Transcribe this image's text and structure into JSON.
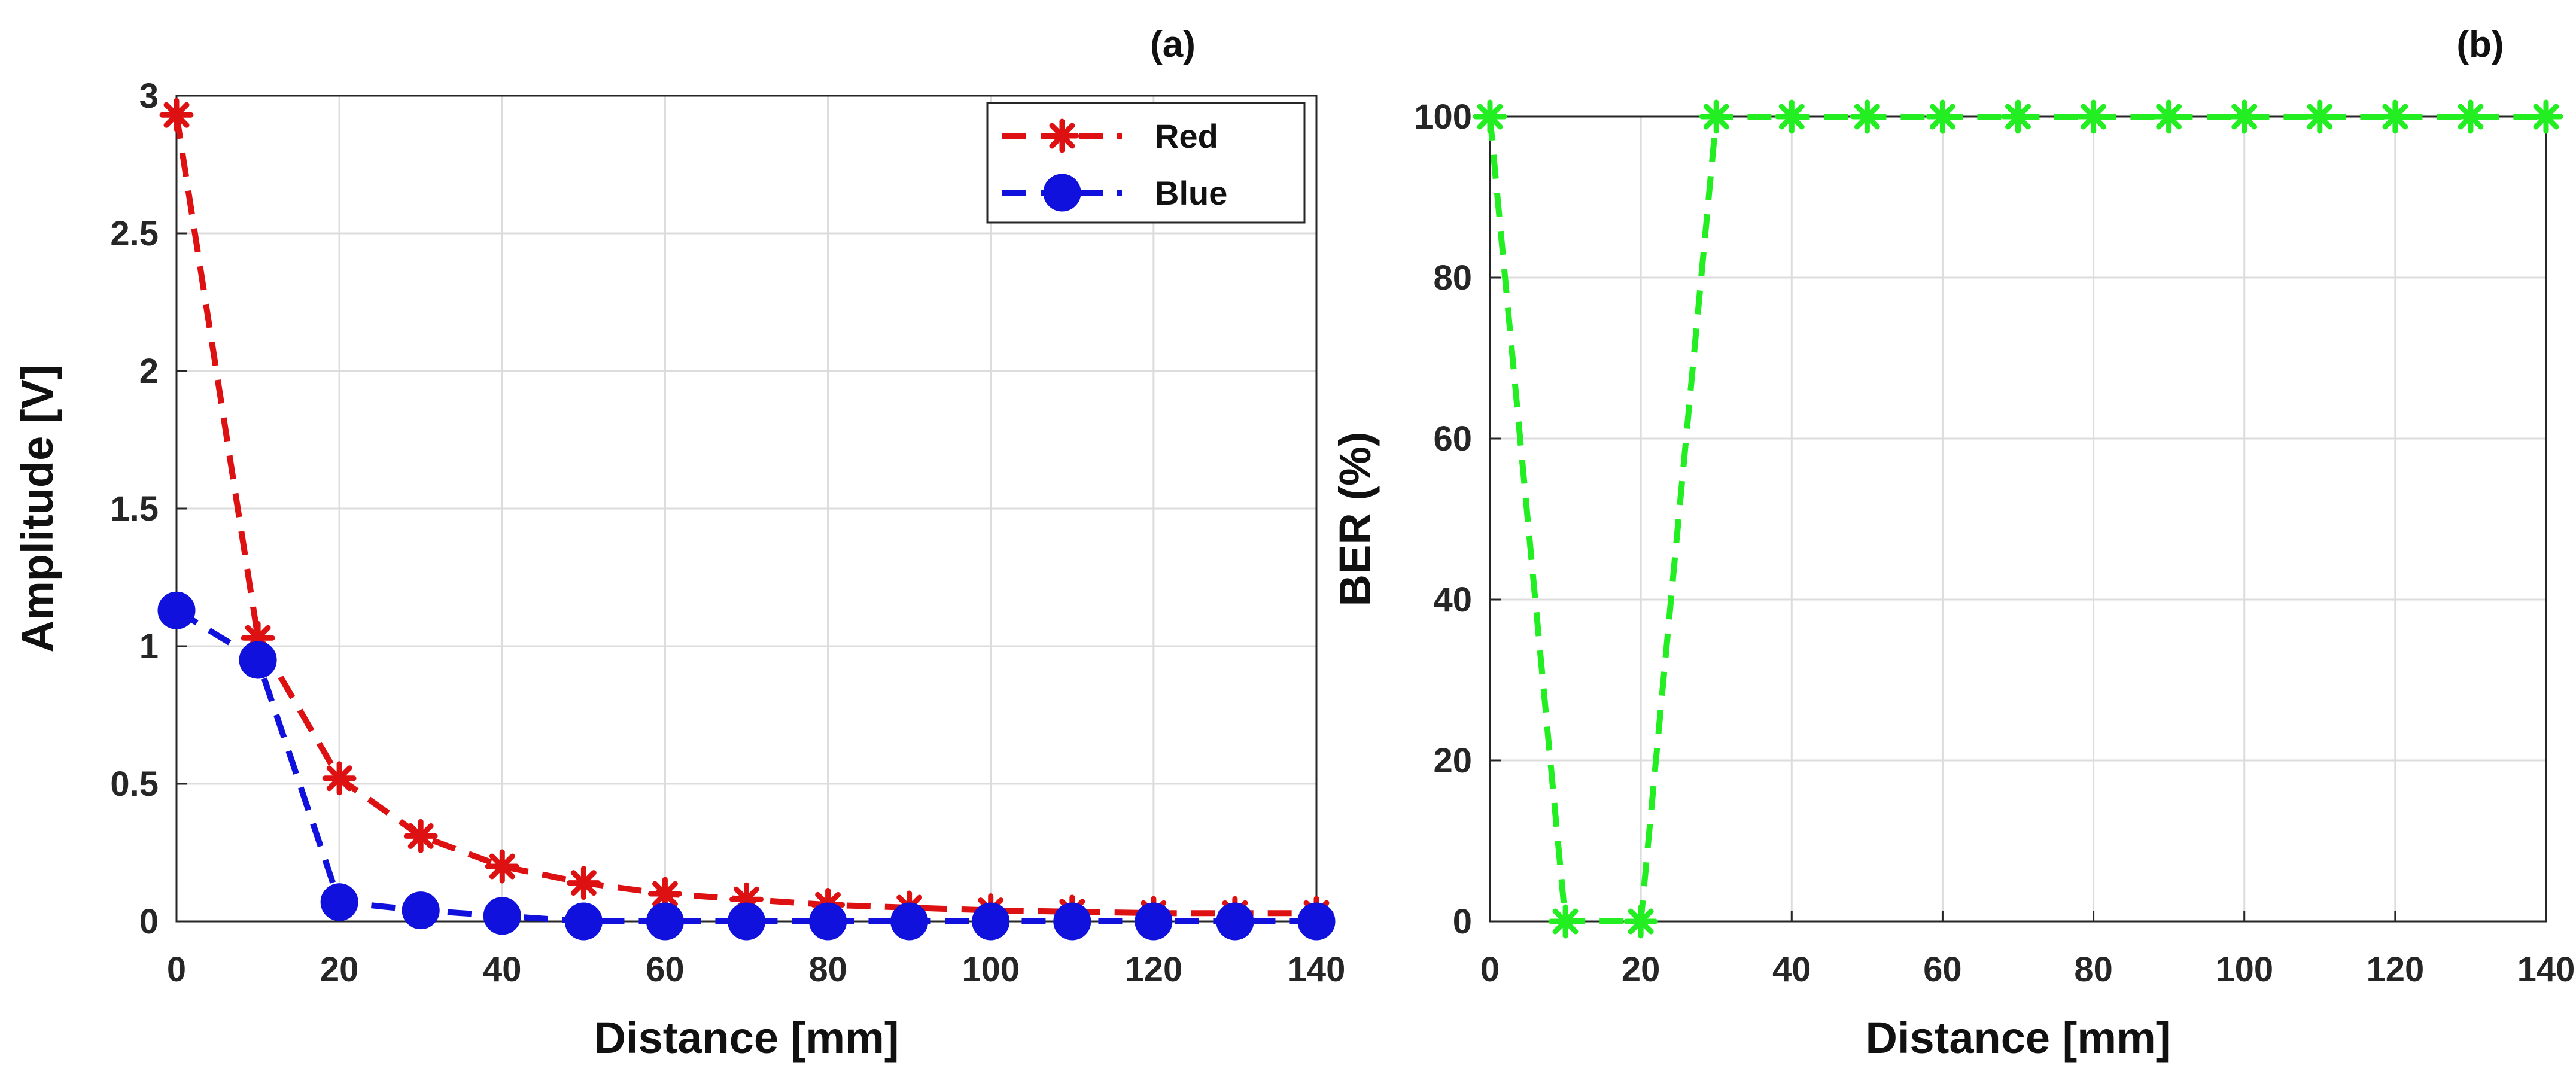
{
  "chart_data": [
    {
      "panel_label": "(a)",
      "type": "line",
      "xlabel": "Distance [mm]",
      "ylabel": "Amplitude [V]",
      "xlim": [
        0,
        140
      ],
      "ylim": [
        0,
        3
      ],
      "xticks": [
        0,
        20,
        40,
        60,
        80,
        100,
        120,
        140
      ],
      "xtick_labels": [
        "0",
        "20",
        "40",
        "60",
        "80",
        "100",
        "120",
        "140"
      ],
      "yticks": [
        0,
        0.5,
        1,
        1.5,
        2,
        2.5,
        3
      ],
      "ytick_labels": [
        "0",
        "0.5",
        "1",
        "1.5",
        "2",
        "2.5",
        "3"
      ],
      "grid": true,
      "legend": "top-right",
      "x": [
        0,
        10,
        20,
        30,
        40,
        50,
        60,
        70,
        80,
        90,
        100,
        110,
        120,
        130,
        140
      ],
      "series": [
        {
          "name": "Red",
          "color": "#dd1111",
          "marker": "asterisk",
          "values": [
            2.93,
            1.03,
            0.52,
            0.31,
            0.2,
            0.14,
            0.1,
            0.08,
            0.06,
            0.05,
            0.04,
            0.035,
            0.03,
            0.03,
            0.03
          ]
        },
        {
          "name": "Blue",
          "color": "#1111dd",
          "marker": "circle",
          "values": [
            1.13,
            0.95,
            0.07,
            0.04,
            0.02,
            0.0,
            0.0,
            0.0,
            0.0,
            0.0,
            0.0,
            0.0,
            0.0,
            0.0,
            0.0
          ]
        }
      ]
    },
    {
      "panel_label": "(b)",
      "type": "line",
      "xlabel": "Distance [mm]",
      "ylabel": "BER (%)",
      "xlim": [
        0,
        140
      ],
      "ylim": [
        0,
        100
      ],
      "xticks": [
        0,
        20,
        40,
        60,
        80,
        100,
        120,
        140
      ],
      "xtick_labels": [
        "0",
        "20",
        "40",
        "60",
        "80",
        "100",
        "120",
        "140"
      ],
      "yticks": [
        0,
        20,
        40,
        60,
        80,
        100
      ],
      "ytick_labels": [
        "0",
        "20",
        "40",
        "60",
        "80",
        "100"
      ],
      "grid": true,
      "x": [
        0,
        10,
        20,
        30,
        40,
        50,
        60,
        70,
        80,
        90,
        100,
        110,
        120,
        130,
        140
      ],
      "series": [
        {
          "color": "#22ee22",
          "marker": "asterisk",
          "values": [
            100,
            0,
            0,
            100,
            100,
            100,
            100,
            100,
            100,
            100,
            100,
            100,
            100,
            100,
            100
          ]
        }
      ]
    }
  ]
}
